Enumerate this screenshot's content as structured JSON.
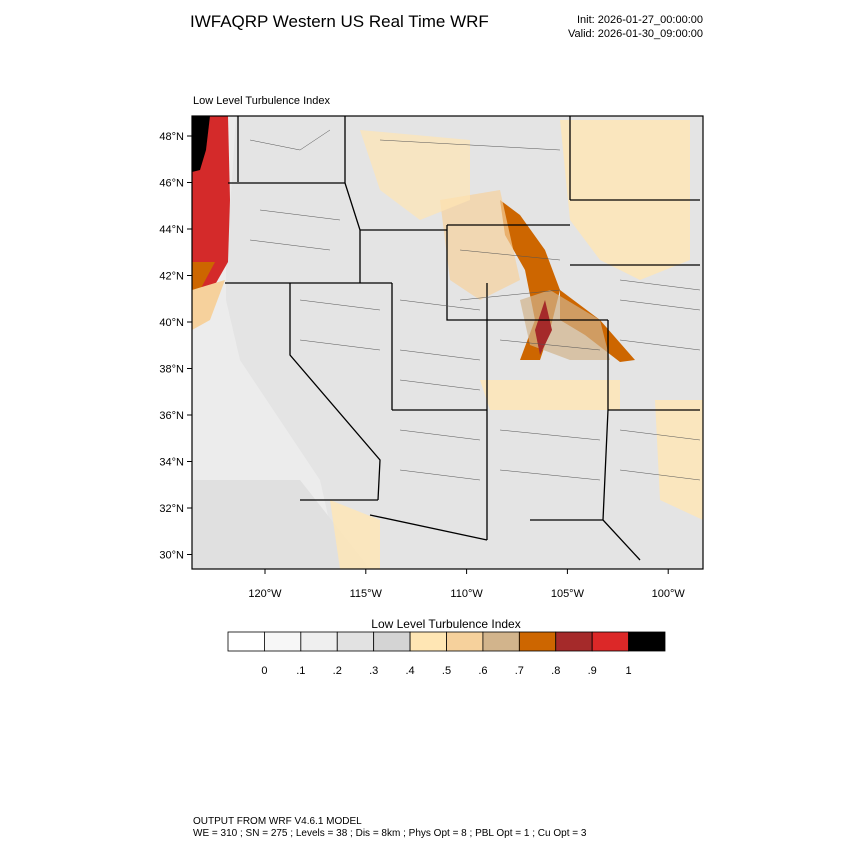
{
  "header": {
    "title": "IWFAQRP Western US Real Time WRF",
    "init": "Init: 2026-01-27_00:00:00",
    "valid": "Valid: 2026-01-30_09:00:00"
  },
  "map": {
    "subtitle": "Low Level Turbulence Index",
    "lat_labels": [
      "48°N",
      "46°N",
      "44°N",
      "42°N",
      "40°N",
      "38°N",
      "36°N",
      "34°N",
      "32°N",
      "30°N"
    ],
    "lon_labels": [
      "120°W",
      "115°W",
      "110°W",
      "105°W",
      "100°W"
    ]
  },
  "colorbar": {
    "title": "Low Level Turbulence Index",
    "colors": [
      "#ffffff",
      "#f7f7f7",
      "#efefef",
      "#e2e2e2",
      "#d4d4d4",
      "#ffe6b4",
      "#f6d19c",
      "#d2b48c",
      "#cd6600",
      "#a52a2a",
      "#dc2828",
      "#000000"
    ],
    "labels": [
      "0",
      ".1",
      ".2",
      ".3",
      ".4",
      ".5",
      ".6",
      ".7",
      ".8",
      ".9",
      "1"
    ]
  },
  "footer": {
    "line1": "OUTPUT FROM WRF V4.6.1 MODEL",
    "line2": "WE = 310 ; SN = 275 ; Levels = 38 ; Dis = 8km ; Phys Opt = 8 ; PBL Opt = 1 ; Cu Opt = 3"
  }
}
